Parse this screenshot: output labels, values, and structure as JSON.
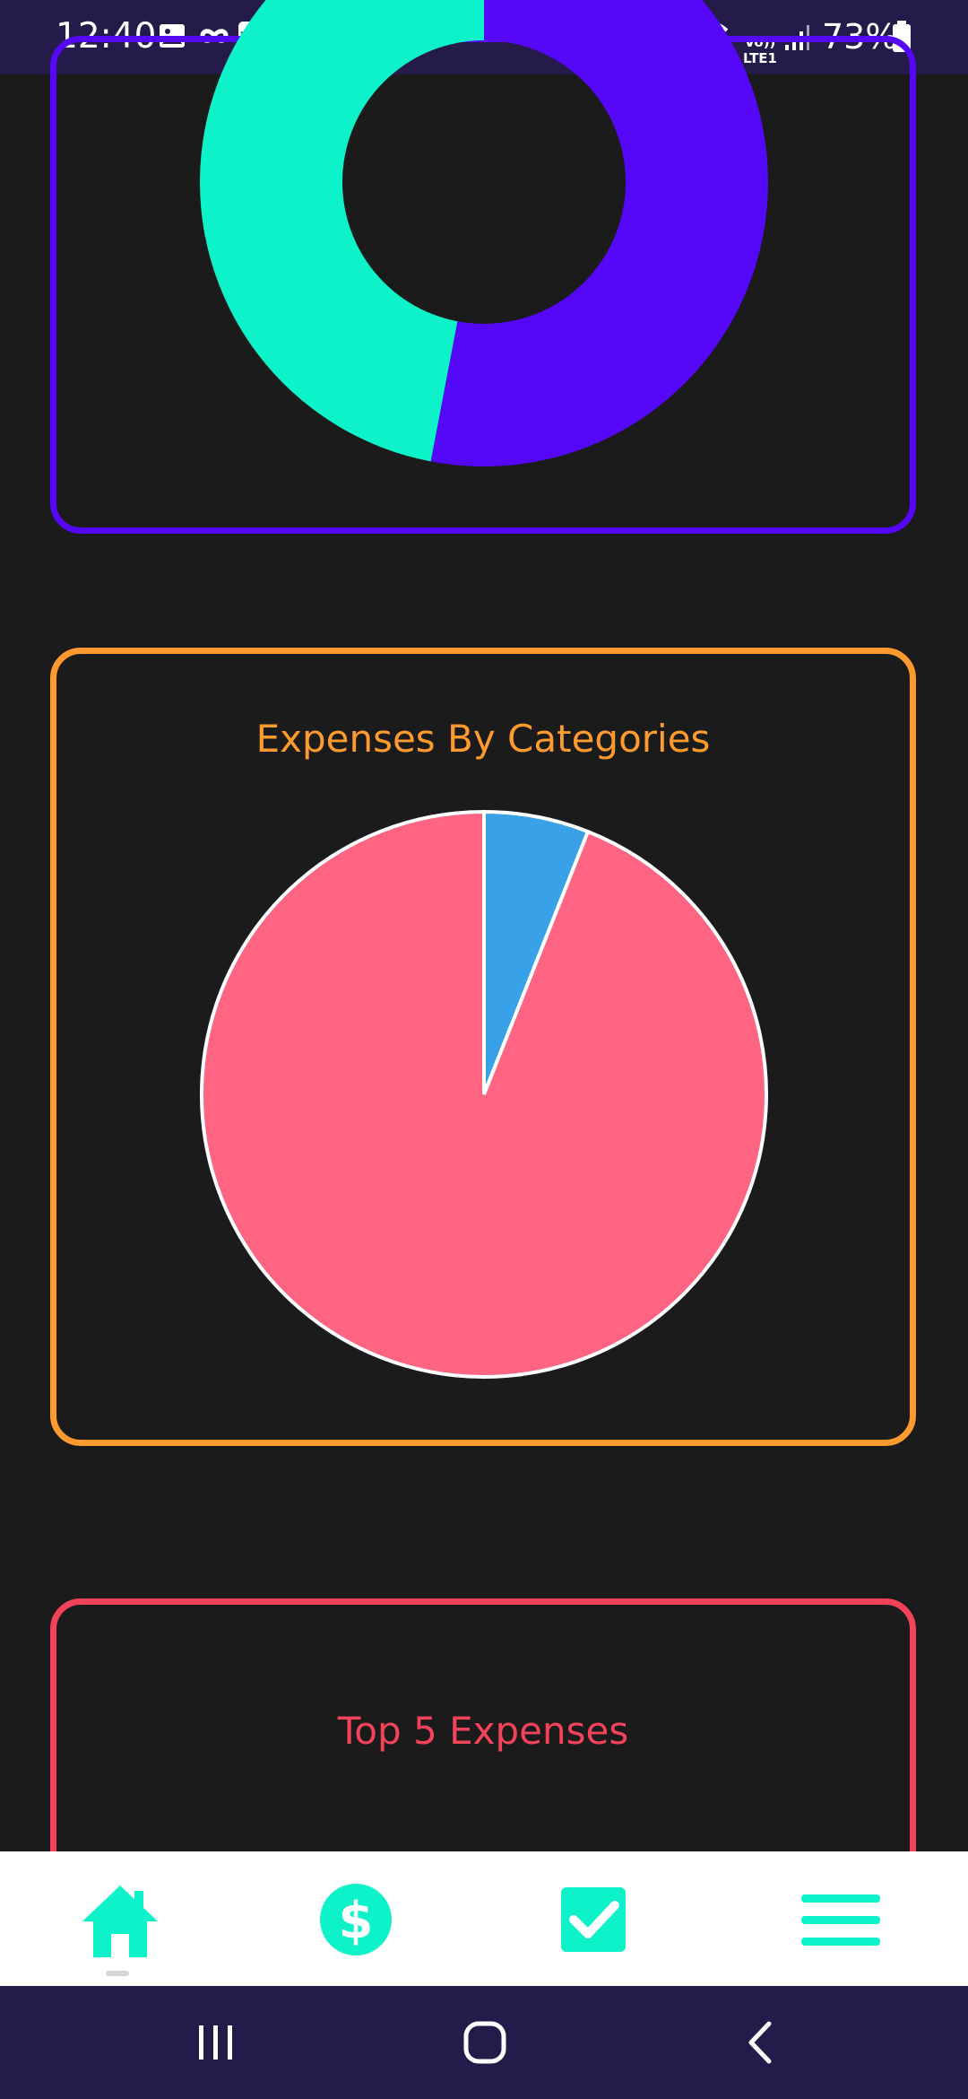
{
  "status_bar": {
    "time": "12:40",
    "notification_icons": [
      "image-icon",
      "infinity-icon",
      "inter-icon"
    ],
    "inter_badge": "inter",
    "system_icons": [
      "alarm-icon",
      "wifi-icon",
      "volte-icon",
      "signal-icon",
      "battery-icon"
    ],
    "volte_label": "Vo))\nLTE1",
    "battery": "73%"
  },
  "colors": {
    "background": "#1b1b1b",
    "status_bar": "#251b4b",
    "accent_teal": "#0df2c9",
    "accent_purple": "#5508f7",
    "accent_orange": "#ff9a2e",
    "accent_red": "#f2435a",
    "slice_blue": "#39a1e8",
    "slice_pink": "#ff6482"
  },
  "charts": {
    "income_vs_expense_card": {
      "border_color": "#5508f7"
    },
    "expenses_by_categories": {
      "title": "Expenses By Categories",
      "border_color": "#ff9a2e"
    },
    "top_5_expenses": {
      "title": "Top 5 Expenses",
      "border_color": "#f2435a"
    }
  },
  "chart_data": [
    {
      "type": "pie",
      "variant": "doughnut",
      "slices": [
        {
          "value": 53,
          "color": "#5508f7"
        },
        {
          "value": 47,
          "color": "#0df2c9"
        }
      ]
    },
    {
      "type": "pie",
      "title": "Expenses By Categories",
      "slices": [
        {
          "value": 6,
          "color": "#39a1e8"
        },
        {
          "value": 94,
          "color": "#ff6482"
        }
      ]
    }
  ],
  "bottom_nav": {
    "items": [
      {
        "name": "home",
        "icon": "home-icon",
        "active": true
      },
      {
        "name": "transactions",
        "icon": "dollar-icon"
      },
      {
        "name": "tasks",
        "icon": "checkbox-icon"
      },
      {
        "name": "menu",
        "icon": "menu-icon"
      }
    ]
  },
  "system_nav": {
    "buttons": [
      "recent-apps-icon",
      "home-circle-icon",
      "back-icon"
    ]
  }
}
